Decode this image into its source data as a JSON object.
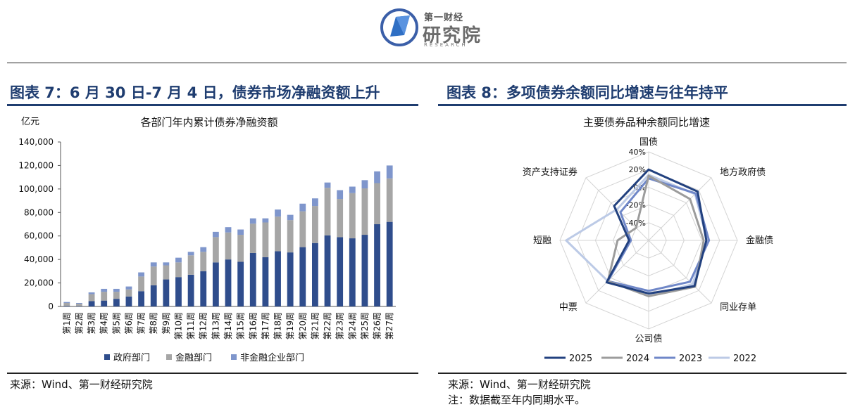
{
  "header": {
    "logo_small": "第一财经",
    "logo_big": "研究院",
    "logo_sub": "RESEARCH"
  },
  "left": {
    "figure_title": "图表 7：6 月 30 日-7 月 4 日，债券市场净融资额上升",
    "source": "来源：Wind、第一财经研究院"
  },
  "right": {
    "figure_title": "图表 8：多项债券余额同比增速与往年持平",
    "source": "来源：Wind、第一财经研究院",
    "note": "注：数据截至年内同期水平。"
  },
  "chart_data": [
    {
      "type": "bar",
      "stacked": true,
      "title": "各部门年内累计债券净融资额",
      "ylabel": "亿元",
      "ylim": [
        0,
        140000
      ],
      "yticks": [
        "0",
        "20,000",
        "40,000",
        "60,000",
        "80,000",
        "100,000",
        "120,000",
        "140,000"
      ],
      "ytick_values": [
        0,
        20000,
        40000,
        60000,
        80000,
        100000,
        120000,
        140000
      ],
      "categories": [
        "第1周",
        "第2周",
        "第3周",
        "第4周",
        "第5周",
        "第6周",
        "第7周",
        "第8周",
        "第9周",
        "第10周",
        "第11周",
        "第12周",
        "第13周",
        "第14周",
        "第15周",
        "第16周",
        "第17周",
        "第18周",
        "第19周",
        "第20周",
        "第21周",
        "第22周",
        "第23周",
        "第24周",
        "第25周",
        "第26周",
        "第27周"
      ],
      "series": [
        {
          "name": "政府部门",
          "color": "#2f4d8c",
          "values": [
            500,
            300,
            4500,
            5000,
            6500,
            8500,
            13000,
            18000,
            23000,
            25000,
            27000,
            30000,
            37500,
            40000,
            38000,
            45500,
            42000,
            47000,
            46000,
            50500,
            54000,
            60500,
            59000,
            58000,
            61000,
            70000,
            72000
          ]
        },
        {
          "name": "金融部门",
          "color": "#a6a6a6",
          "values": [
            2500,
            2000,
            6000,
            7500,
            6000,
            6000,
            12500,
            16000,
            12000,
            12500,
            16500,
            16500,
            21500,
            23000,
            23000,
            25000,
            29500,
            29500,
            27500,
            30500,
            31500,
            40500,
            32500,
            38500,
            39500,
            35000,
            37000
          ]
        },
        {
          "name": "非金融企业部门",
          "color": "#7f96cc",
          "values": [
            800,
            700,
            1500,
            2500,
            2500,
            2500,
            3500,
            3500,
            2500,
            4000,
            3000,
            4000,
            4500,
            4500,
            4500,
            4500,
            3500,
            6000,
            4500,
            6500,
            6500,
            4500,
            7500,
            5500,
            7000,
            10000,
            11000
          ]
        }
      ],
      "legend": "bottom"
    },
    {
      "type": "radar",
      "title": "主要债券品种余额同比增速",
      "axes": [
        "国债",
        "地方政府债",
        "金融债",
        "同业存单",
        "公司债",
        "中票",
        "短融",
        "资产支持证券"
      ],
      "rlim": [
        -60,
        40
      ],
      "rticks": [
        "40%",
        "20%",
        "0%",
        "-20%",
        "-40%"
      ],
      "rtick_values": [
        40,
        20,
        0,
        -20,
        -40
      ],
      "series": [
        {
          "name": "2025",
          "color": "#22417f",
          "values": [
            20,
            18,
            5,
            13,
            0,
            7,
            -38,
            -5
          ]
        },
        {
          "name": "2024",
          "color": "#9c9c9c",
          "values": [
            13,
            6,
            2,
            14,
            3,
            5,
            -25,
            -40
          ]
        },
        {
          "name": "2023",
          "color": "#6f87c8",
          "values": [
            10,
            15,
            8,
            6,
            -3,
            5,
            -40,
            -15
          ]
        },
        {
          "name": "2022",
          "color": "#bccae6",
          "values": [
            14,
            14,
            6,
            10,
            3,
            5,
            33,
            -10
          ]
        }
      ],
      "legend": "bottom"
    }
  ]
}
